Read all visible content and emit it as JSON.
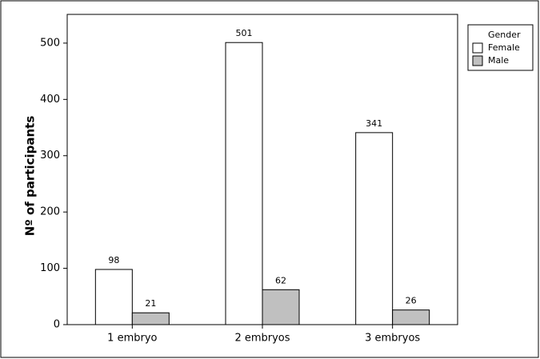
{
  "chart_data": {
    "type": "bar",
    "y_label": "Nº of participants",
    "categories": [
      "1 embryo",
      "2 embryos",
      "3 embryos"
    ],
    "legend_title": "Gender",
    "legend": "right",
    "series": [
      {
        "name": "Female",
        "color": "#ffffff",
        "values": [
          98,
          501,
          341
        ]
      },
      {
        "name": "Male",
        "color": "#c0c0c0",
        "values": [
          21,
          62,
          26
        ]
      }
    ],
    "ylim": [
      0,
      551
    ],
    "yticks": [
      0,
      100,
      200,
      300,
      400,
      500
    ]
  }
}
